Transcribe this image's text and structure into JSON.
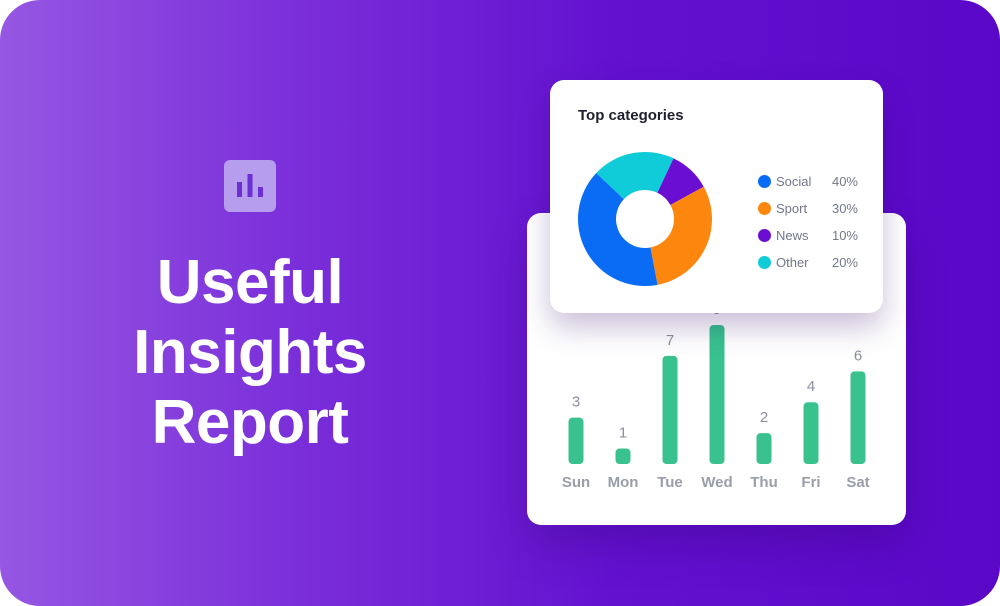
{
  "headline": {
    "lines": [
      "Useful",
      "Insights",
      "Report"
    ]
  },
  "logo": {
    "icon": "bar-chart-icon"
  },
  "colors": {
    "background_start": "#9657e3",
    "background_end": "#5b07c7",
    "bar": "#39c28e",
    "social": "#0a6cf4",
    "sport": "#fd870e",
    "news": "#6a0fd2",
    "other": "#10ccd8"
  },
  "categories_card": {
    "title": "Top categories"
  },
  "chart_data": [
    {
      "type": "pie",
      "title": "Top categories",
      "categories": [
        "Social",
        "Sport",
        "News",
        "Other"
      ],
      "values": [
        40,
        30,
        10,
        20
      ],
      "labels": [
        "40%",
        "30%",
        "10%",
        "20%"
      ],
      "colors": [
        "#0a6cf4",
        "#fd870e",
        "#6a0fd2",
        "#10ccd8"
      ],
      "donut": true,
      "legend": "right"
    },
    {
      "type": "bar",
      "categories": [
        "Sun",
        "Mon",
        "Tue",
        "Wed",
        "Thu",
        "Fri",
        "Sat"
      ],
      "values": [
        3,
        1,
        7,
        9,
        2,
        4,
        6
      ],
      "data_labels": true,
      "ylim": [
        0,
        9
      ],
      "grid": false
    }
  ]
}
